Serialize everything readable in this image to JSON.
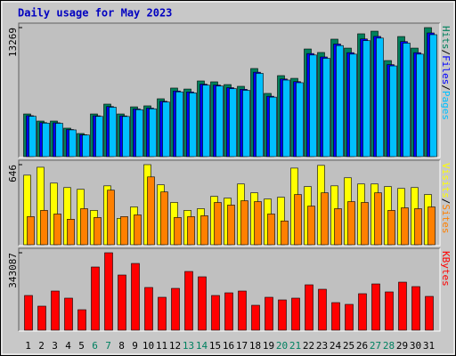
{
  "chart_data": {
    "type": "bar",
    "title": "Daily usage for May 2023",
    "categories": [
      "1",
      "2",
      "3",
      "4",
      "5",
      "6",
      "7",
      "8",
      "9",
      "10",
      "11",
      "12",
      "13",
      "14",
      "15",
      "16",
      "17",
      "18",
      "19",
      "20",
      "21",
      "22",
      "23",
      "24",
      "25",
      "26",
      "27",
      "28",
      "29",
      "30",
      "31"
    ],
    "category_colors": [
      "#000000",
      "#000000",
      "#000000",
      "#000000",
      "#000000",
      "#008060",
      "#008060",
      "#000000",
      "#000000",
      "#000000",
      "#000000",
      "#000000",
      "#008060",
      "#008060",
      "#000000",
      "#000000",
      "#000000",
      "#000000",
      "#000000",
      "#008060",
      "#008060",
      "#000000",
      "#000000",
      "#000000",
      "#000000",
      "#000000",
      "#008060",
      "#008060",
      "#000000",
      "#000000",
      "#000000"
    ],
    "legend_separator": "/",
    "panels": [
      {
        "ylim": [
          0,
          13269
        ],
        "yticks": [
          13269
        ],
        "series": [
          {
            "name": "Hits",
            "color": "#00805c",
            "values": [
              4390,
              3660,
              3660,
              2930,
              2380,
              4390,
              5400,
              4390,
              5120,
              5220,
              5950,
              7050,
              6950,
              7780,
              7690,
              7410,
              7230,
              9060,
              6500,
              8330,
              8050,
              11070,
              10710,
              12080,
              11160,
              12630,
              12900,
              9880,
              12350,
              11160,
              13269
            ]
          },
          {
            "name": "Files",
            "color": "#0000ff",
            "values": [
              4210,
              3500,
              3480,
              2790,
              2250,
              4200,
              5150,
              4190,
              4900,
              4990,
              5690,
              6750,
              6650,
              7450,
              7360,
              7090,
              6920,
              8680,
              6210,
              7980,
              7710,
              10600,
              10250,
              11580,
              10690,
              12100,
              12360,
              9460,
              11830,
              10690,
              12720
            ]
          },
          {
            "name": "Pages",
            "color": "#00c0ff",
            "values": [
              4150,
              3450,
              3430,
              2750,
              2220,
              4140,
              5080,
              4130,
              4830,
              4920,
              5610,
              6660,
              6560,
              7350,
              7260,
              6990,
              6820,
              8560,
              6120,
              7870,
              7600,
              10450,
              10110,
              11420,
              10540,
              11930,
              12190,
              9330,
              11670,
              10540,
              12540
            ]
          }
        ]
      },
      {
        "ylim": [
          0,
          646
        ],
        "yticks": [
          646
        ],
        "series": [
          {
            "name": "Visits",
            "color": "#ffff00",
            "values": [
              561,
              625,
              497,
              461,
              447,
              277,
              475,
              213,
              305,
              646,
              483,
              341,
              277,
              291,
              390,
              376,
              490,
              419,
              369,
              383,
              618,
              469,
              640,
              475,
              540,
              490,
              490,
              469,
              454,
              461,
              405
            ]
          },
          {
            "name": "Sites",
            "color": "#ff8000",
            "values": [
              227,
              277,
              248,
              206,
              291,
              220,
              440,
              227,
              241,
              547,
              426,
              220,
              227,
              234,
              341,
              320,
              355,
              348,
              248,
              192,
              405,
              312,
              419,
              291,
              348,
              341,
              419,
              277,
              298,
              291,
              305
            ]
          }
        ]
      },
      {
        "ylim": [
          0,
          343087
        ],
        "yticks": [
          343087
        ],
        "series": [
          {
            "name": "KBytes",
            "color": "#ff0000",
            "values": [
              153800,
              106500,
              173500,
              142000,
              90700,
              280000,
              343087,
              244500,
              295700,
              189300,
              145900,
              185300,
              260200,
              236600,
              153800,
              165600,
              173500,
              110400,
              145900,
              134100,
              142000,
              201100,
              181400,
              122200,
              114400,
              161700,
              205000,
              169600,
              212900,
              193200,
              149800
            ]
          }
        ]
      }
    ]
  }
}
